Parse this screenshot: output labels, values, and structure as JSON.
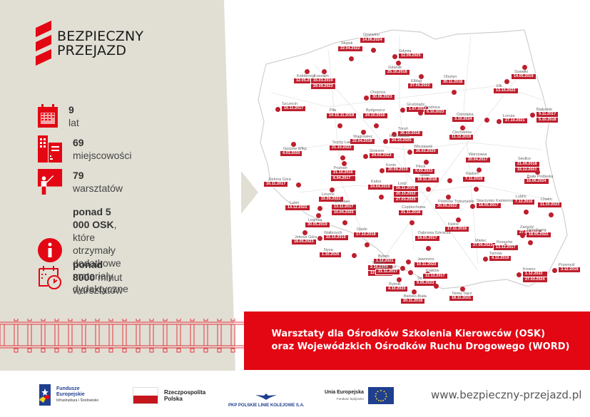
{
  "brand": {
    "line1": "BEZPIECZNY",
    "line2": "PRZEJAZD",
    "accent_color": "#e30613",
    "marker_color": "#be1e2d",
    "panel_color": "#e1dfd4"
  },
  "stats": [
    {
      "icon": "calendar-icon",
      "bold": "9",
      "text": " lat"
    },
    {
      "icon": "buildings-icon",
      "bold": "69",
      "text": " miejscowości"
    },
    {
      "icon": "teacher-board-icon",
      "bold": "79",
      "text": " warsztatów"
    },
    {
      "icon": "info-icon",
      "bold": "ponad 5 000 OSK",
      "text": ",",
      "line2": "które otrzymały dodatkowe",
      "line3": "materiały dydaktyczne"
    },
    {
      "icon": "calendar-clock-icon",
      "bold": "ponad 8000",
      "text": " minut warsztatów"
    }
  ],
  "banner": {
    "line1": "Warsztaty dla Ośrodków Szkolenia Kierowców (OSK)",
    "line2": "oraz Wojewódzkich Ośrodków Ruchu Drogowego (WORD)"
  },
  "locations": [
    {
      "city": "Gniewino",
      "dates": [
        "14.06.2024"
      ]
    },
    {
      "city": "Gdynia",
      "dates": [
        "12.09.2025"
      ]
    },
    {
      "city": "Słupsk",
      "dates": [
        "22.04.2022"
      ]
    },
    {
      "city": "Gdańsk",
      "dates": [
        "25.10.2018"
      ]
    },
    {
      "city": "Kołobrzeg",
      "dates": [
        "12.05.2023"
      ]
    },
    {
      "city": "Koszalin",
      "dates": [
        "15.03.2019",
        "29.09.2023"
      ]
    },
    {
      "city": "Elbląg",
      "dates": [
        "27.05.2022"
      ]
    },
    {
      "city": "Olsztyn",
      "dates": [
        "30.11.2018"
      ]
    },
    {
      "city": "Suwałki",
      "dates": [
        "14.05.2019"
      ]
    },
    {
      "city": "Ełk",
      "dates": [
        "13.10.2022"
      ]
    },
    {
      "city": "Chojnice",
      "dates": [
        "30.06.2023"
      ]
    },
    {
      "city": "Grudziądz",
      "dates": [
        "1.07.2022"
      ]
    },
    {
      "city": "Szczecin",
      "dates": [
        "15.11.2017"
      ]
    },
    {
      "city": "Piła",
      "dates": [
        "14-15.11.2018"
      ]
    },
    {
      "city": "Bydgoszcz",
      "dates": [
        "24.10.2016"
      ]
    },
    {
      "city": "Brodnica",
      "dates": [
        "6.10.2023"
      ]
    },
    {
      "city": "Ostrołęka",
      "dates": [
        "3.10.2024"
      ]
    },
    {
      "city": "Łomża",
      "dates": [
        "27.10.2021"
      ]
    },
    {
      "city": "Białystok",
      "dates": [
        "9.11.2017",
        "5.10.2018"
      ]
    },
    {
      "city": "Wągrowiec",
      "dates": [
        "22.04.2018"
      ]
    },
    {
      "city": "Toruń",
      "dates": [
        "26.10.2018"
      ]
    },
    {
      "city": "Inowrocław",
      "dates": [
        "24.10.2025"
      ]
    },
    {
      "city": "Ciechanów",
      "dates": [
        "11.12.2019"
      ]
    },
    {
      "city": "Gorzów Wlkp.",
      "dates": [
        "4.03.2020"
      ]
    },
    {
      "city": "Suchy Las",
      "dates": [
        "21.10.2022"
      ]
    },
    {
      "city": "Gniezno",
      "dates": [
        "24.03.2023"
      ]
    },
    {
      "city": "Włocławek",
      "dates": [
        "26.02.2020"
      ]
    },
    {
      "city": "Płock",
      "dates": [
        "9.03.2023"
      ]
    },
    {
      "city": "Warszawa",
      "dates": [
        "20.04.2017"
      ]
    },
    {
      "city": "Siedlce",
      "dates": [
        "21.09.2018",
        "15.12.2021"
      ]
    },
    {
      "city": "Konin",
      "dates": [
        "20.09.2019"
      ]
    },
    {
      "city": "Poznań",
      "dates": [
        "21.10.2016",
        "6.04.2017"
      ]
    },
    {
      "city": "Zielona Góra",
      "dates": [
        "16.11.2017"
      ]
    },
    {
      "city": "Biała Podlaska",
      "dates": [
        "16.06.2024"
      ]
    },
    {
      "city": "Leszno",
      "dates": [
        "15.06.2022"
      ]
    },
    {
      "city": "Kalisz",
      "dates": [
        "24.04.2019"
      ]
    },
    {
      "city": "Łódź",
      "dates": [
        "16.11.2016",
        "20.10.2022",
        "27.03.2025"
      ]
    },
    {
      "city": "Radom",
      "dates": [
        "7.11.2018"
      ]
    },
    {
      "city": "Lublin",
      "dates": [
        "7.12.2016"
      ]
    },
    {
      "city": "Chełm",
      "dates": [
        "11.10.2023"
      ]
    },
    {
      "city": "Lubin",
      "dates": [
        "14.12.2022"
      ]
    },
    {
      "city": "Wrocław",
      "dates": [
        "13.11.2017",
        "10.04.2025"
      ]
    },
    {
      "city": "Spała",
      "dates": [
        "18.11.2018"
      ]
    },
    {
      "city": "Legnica",
      "dates": [
        "30.05.2019"
      ]
    },
    {
      "city": "Piotrków Trybunalski",
      "dates": [
        "30.09.2022"
      ]
    },
    {
      "city": "Skarżysko Kamienna",
      "dates": [
        "18.05.2017"
      ]
    },
    {
      "city": "Zamość",
      "dates": [
        "27.02.2019"
      ]
    },
    {
      "city": "Jelenia Góra",
      "dates": [
        "18.05.2023"
      ]
    },
    {
      "city": "Wałbrzych",
      "dates": [
        "22.10.2019"
      ]
    },
    {
      "city": "Opole",
      "dates": [
        "17.10.2018"
      ]
    },
    {
      "city": "Częstochowa",
      "dates": [
        "21.11.2018"
      ]
    },
    {
      "city": "Kielce",
      "dates": [
        "17.11.2016"
      ]
    },
    {
      "city": "Tarnobrzeg",
      "dates": [
        "18.05.2022"
      ]
    },
    {
      "city": "Dąbrowa Górnicza",
      "dates": [
        "18.05.2017"
      ]
    },
    {
      "city": "Nysa",
      "dates": [
        "1.10.2025"
      ]
    },
    {
      "city": "Bytom",
      "dates": [
        "1.12.2021"
      ]
    },
    {
      "city": "Mielec",
      "dates": [
        "27.06.2023"
      ]
    },
    {
      "city": "Rzeszów",
      "dates": [
        "13.12.2017"
      ]
    },
    {
      "city": "Gliwice",
      "dates": [
        "2.10.2024",
        "12.12.2019"
      ]
    },
    {
      "city": "Katowice",
      "dates": [
        "21.11.2017"
      ]
    },
    {
      "city": "Sosnowiec",
      "dates": [
        "9.05.2023"
      ]
    },
    {
      "city": "Jaworzno",
      "dates": [
        "10.11.2023"
      ]
    },
    {
      "city": "Rybnik",
      "dates": [
        "4.10.2023"
      ]
    },
    {
      "city": "Kraków",
      "dates": [
        "12.12.2017"
      ]
    },
    {
      "city": "Tarnów",
      "dates": [
        "4.12.2019"
      ]
    },
    {
      "city": "Przemyśl",
      "dates": [
        "3.12.2019"
      ]
    },
    {
      "city": "Bielsko-Biała",
      "dates": [
        "20.11.2018"
      ]
    },
    {
      "city": "Krosno",
      "dates": [
        "1.12.2022",
        "27.03.2024"
      ]
    },
    {
      "city": "Nowy Sącz",
      "dates": [
        "18.11.2021"
      ]
    }
  ],
  "footer": {
    "fe_line1": "Fundusze",
    "fe_line2": "Europejskie",
    "fe_sub": "Infrastruktura i Środowisko",
    "rp_line1": "Rzeczpospolita",
    "rp_line2": "Polska",
    "pkp": "PKP POLSKIE LINIE KOLEJOWE S.A.",
    "ue_line1": "Unia Europejska",
    "ue_sub": "Fundusz Spójności",
    "website": "www.bezpieczny-przejazd.pl"
  }
}
